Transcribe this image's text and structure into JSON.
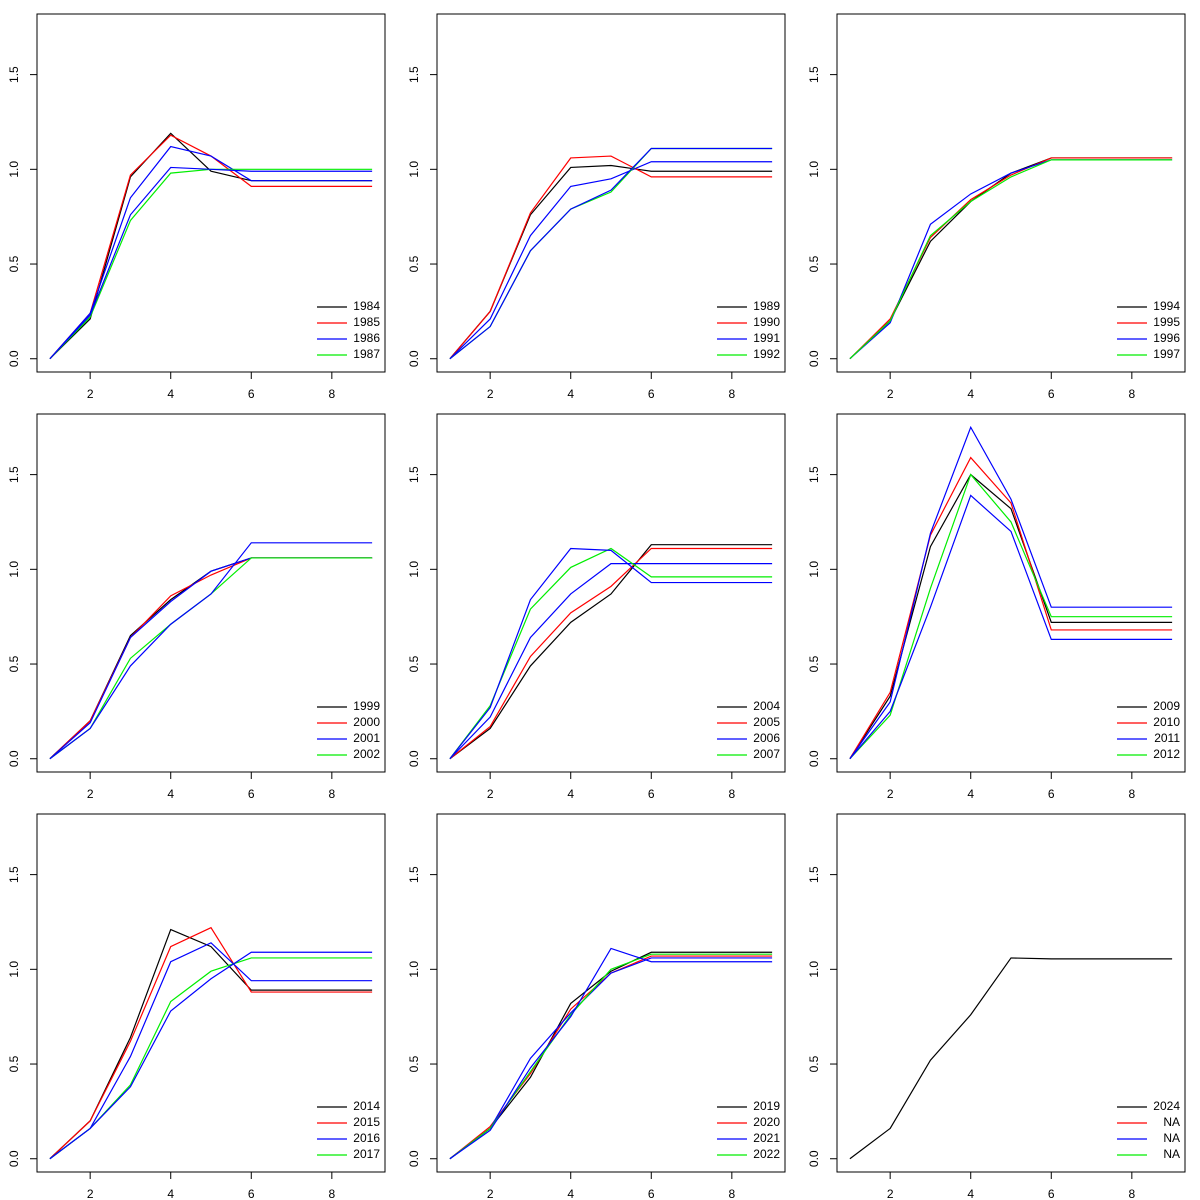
{
  "chart_data": [
    {
      "type": "line",
      "x": [
        1,
        2,
        3,
        4,
        5,
        6,
        7,
        8,
        9
      ],
      "xlim": [
        0.68,
        9.32
      ],
      "ylim": [
        -0.07,
        1.82
      ],
      "xticks": [
        2,
        4,
        6,
        8
      ],
      "yticks": [
        {
          "value": 0,
          "label": "0.0"
        },
        0.5,
        {
          "value": 1,
          "label": "1.0"
        },
        1.5
      ],
      "legend": "bottomright",
      "series": [
        {
          "name": "1984",
          "color": "#000000",
          "values": [
            0,
            0.21,
            0.96,
            1.19,
            0.99,
            0.94,
            0.94,
            0.94,
            0.94
          ]
        },
        {
          "name": "1985",
          "color": "#ff0000",
          "values": [
            0,
            0.24,
            0.97,
            1.18,
            1.07,
            0.91,
            0.91,
            0.91,
            0.91
          ]
        },
        {
          "name": "1986",
          "color": "#0000ff",
          "values": [
            0,
            0.24,
            0.85,
            1.12,
            1.07,
            0.94,
            0.94,
            0.94,
            0.94
          ]
        },
        {
          "name": "1987",
          "color": "#00ee00",
          "values": [
            0,
            0.22,
            0.73,
            0.98,
            1.0,
            1.0,
            1.0,
            1.0,
            1.0
          ]
        },
        {
          "color": "#0000ff",
          "values": [
            0,
            0.23,
            0.76,
            1.01,
            1.0,
            0.99,
            0.99,
            0.99,
            0.99
          ]
        }
      ]
    },
    {
      "type": "line",
      "x": [
        1,
        2,
        3,
        4,
        5,
        6,
        7,
        8,
        9
      ],
      "xlim": [
        0.68,
        9.32
      ],
      "ylim": [
        -0.07,
        1.82
      ],
      "xticks": [
        2,
        4,
        6,
        8
      ],
      "yticks": [
        {
          "value": 0,
          "label": "0.0"
        },
        0.5,
        {
          "value": 1,
          "label": "1.0"
        },
        1.5
      ],
      "legend": "bottomright",
      "series": [
        {
          "name": "1989",
          "color": "#000000",
          "values": [
            0,
            0.25,
            0.76,
            1.01,
            1.02,
            0.99,
            0.99,
            0.99,
            0.99
          ]
        },
        {
          "name": "1990",
          "color": "#ff0000",
          "values": [
            0,
            0.25,
            0.77,
            1.06,
            1.07,
            0.96,
            0.96,
            0.96,
            0.96
          ]
        },
        {
          "name": "1991",
          "color": "#0000ff",
          "values": [
            0,
            0.21,
            0.65,
            0.91,
            0.95,
            1.04,
            1.04,
            1.04,
            1.04
          ]
        },
        {
          "name": "1992",
          "color": "#00ee00",
          "values": [
            0,
            0.17,
            0.57,
            0.79,
            0.88,
            1.11,
            1.11,
            1.11,
            1.11
          ]
        },
        {
          "color": "#0000ff",
          "values": [
            0,
            0.17,
            0.57,
            0.79,
            0.89,
            1.11,
            1.11,
            1.11,
            1.11
          ]
        }
      ]
    },
    {
      "type": "line",
      "x": [
        1,
        2,
        3,
        4,
        5,
        6,
        7,
        8,
        9
      ],
      "xlim": [
        0.68,
        9.32
      ],
      "ylim": [
        -0.07,
        1.82
      ],
      "xticks": [
        2,
        4,
        6,
        8
      ],
      "yticks": [
        {
          "value": 0,
          "label": "0.0"
        },
        0.5,
        {
          "value": 1,
          "label": "1.0"
        },
        1.5
      ],
      "legend": "bottomright",
      "series": [
        {
          "name": "1994",
          "color": "#000000",
          "values": [
            0,
            0.2,
            0.62,
            0.83,
            0.98,
            1.06,
            1.06,
            1.06,
            1.06
          ]
        },
        {
          "name": "1995",
          "color": "#ff0000",
          "values": [
            0,
            0.21,
            0.64,
            0.84,
            0.97,
            1.06,
            1.06,
            1.06,
            1.06
          ]
        },
        {
          "name": "1996",
          "color": "#0000ff",
          "values": [
            0,
            0.19,
            0.71,
            0.87,
            0.98,
            1.05,
            1.05,
            1.05,
            1.05
          ]
        },
        {
          "name": "1997",
          "color": "#00ee00",
          "values": [
            0,
            0.2,
            0.65,
            0.83,
            0.96,
            1.05,
            1.05,
            1.05,
            1.05
          ]
        }
      ]
    },
    {
      "type": "line",
      "x": [
        1,
        2,
        3,
        4,
        5,
        6,
        7,
        8,
        9
      ],
      "xlim": [
        0.68,
        9.32
      ],
      "ylim": [
        -0.07,
        1.82
      ],
      "xticks": [
        2,
        4,
        6,
        8
      ],
      "yticks": [
        {
          "value": 0,
          "label": "0.0"
        },
        0.5,
        {
          "value": 1,
          "label": "1.0"
        },
        1.5
      ],
      "legend": "bottomright",
      "series": [
        {
          "name": "1999",
          "color": "#000000",
          "values": [
            0,
            0.2,
            0.65,
            0.84,
            0.99,
            1.06,
            1.06,
            1.06,
            1.06
          ]
        },
        {
          "name": "2000",
          "color": "#ff0000",
          "values": [
            0,
            0.2,
            0.64,
            0.86,
            0.97,
            1.06,
            1.06,
            1.06,
            1.06
          ]
        },
        {
          "name": "2001",
          "color": "#0000ff",
          "values": [
            0,
            0.19,
            0.64,
            0.83,
            0.99,
            1.06,
            1.06,
            1.06,
            1.06
          ]
        },
        {
          "name": "2002",
          "color": "#00ee00",
          "values": [
            0,
            0.16,
            0.53,
            0.71,
            0.87,
            1.06,
            1.06,
            1.06,
            1.06
          ]
        },
        {
          "color": "#0000ff",
          "values": [
            0,
            0.16,
            0.49,
            0.71,
            0.87,
            1.14,
            1.14,
            1.14,
            1.14
          ]
        }
      ]
    },
    {
      "type": "line",
      "x": [
        1,
        2,
        3,
        4,
        5,
        6,
        7,
        8,
        9
      ],
      "xlim": [
        0.68,
        9.32
      ],
      "ylim": [
        -0.07,
        1.82
      ],
      "xticks": [
        2,
        4,
        6,
        8
      ],
      "yticks": [
        {
          "value": 0,
          "label": "0.0"
        },
        0.5,
        {
          "value": 1,
          "label": "1.0"
        },
        1.5
      ],
      "legend": "bottomright",
      "series": [
        {
          "name": "2004",
          "color": "#000000",
          "values": [
            0,
            0.16,
            0.49,
            0.72,
            0.87,
            1.13,
            1.13,
            1.13,
            1.13
          ]
        },
        {
          "name": "2005",
          "color": "#ff0000",
          "values": [
            0,
            0.17,
            0.54,
            0.77,
            0.91,
            1.11,
            1.11,
            1.11,
            1.11
          ]
        },
        {
          "name": "2006",
          "color": "#0000ff",
          "values": [
            0,
            0.22,
            0.64,
            0.87,
            1.03,
            1.03,
            1.03,
            1.03,
            1.03
          ]
        },
        {
          "name": "2007",
          "color": "#00ee00",
          "values": [
            0,
            0.28,
            0.79,
            1.01,
            1.11,
            0.96,
            0.96,
            0.96,
            0.96
          ]
        },
        {
          "color": "#0000ff",
          "values": [
            0,
            0.27,
            0.84,
            1.11,
            1.1,
            0.93,
            0.93,
            0.93,
            0.93
          ]
        }
      ]
    },
    {
      "type": "line",
      "x": [
        1,
        2,
        3,
        4,
        5,
        6,
        7,
        8,
        9
      ],
      "xlim": [
        0.68,
        9.32
      ],
      "ylim": [
        -0.07,
        1.82
      ],
      "xticks": [
        2,
        4,
        6,
        8
      ],
      "yticks": [
        {
          "value": 0,
          "label": "0.0"
        },
        0.5,
        {
          "value": 1,
          "label": "1.0"
        },
        1.5
      ],
      "legend": "bottomright",
      "series": [
        {
          "name": "2009",
          "color": "#000000",
          "values": [
            0,
            0.33,
            1.12,
            1.5,
            1.32,
            0.72,
            0.72,
            0.72,
            0.72
          ]
        },
        {
          "name": "2010",
          "color": "#ff0000",
          "values": [
            0,
            0.35,
            1.18,
            1.59,
            1.35,
            0.68,
            0.68,
            0.68,
            0.68
          ]
        },
        {
          "name": "2011",
          "color": "#0000ff",
          "values": [
            0,
            0.3,
            1.19,
            1.75,
            1.37,
            0.8,
            0.8,
            0.8,
            0.8
          ]
        },
        {
          "name": "2012",
          "color": "#00ee00",
          "values": [
            0,
            0.23,
            0.9,
            1.5,
            1.25,
            0.75,
            0.75,
            0.75,
            0.75
          ]
        },
        {
          "color": "#0000ff",
          "values": [
            0,
            0.25,
            0.8,
            1.39,
            1.2,
            0.63,
            0.63,
            0.63,
            0.63
          ]
        }
      ]
    },
    {
      "type": "line",
      "x": [
        1,
        2,
        3,
        4,
        5,
        6,
        7,
        8,
        9
      ],
      "xlim": [
        0.68,
        9.32
      ],
      "ylim": [
        -0.07,
        1.82
      ],
      "xticks": [
        2,
        4,
        6,
        8
      ],
      "yticks": [
        {
          "value": 0,
          "label": "0.0"
        },
        0.5,
        {
          "value": 1,
          "label": "1.0"
        },
        1.5
      ],
      "legend": "bottomright",
      "series": [
        {
          "name": "2014",
          "color": "#000000",
          "values": [
            0,
            0.2,
            0.64,
            1.21,
            1.12,
            0.89,
            0.89,
            0.89,
            0.89
          ]
        },
        {
          "name": "2015",
          "color": "#ff0000",
          "values": [
            0,
            0.2,
            0.62,
            1.12,
            1.22,
            0.88,
            0.88,
            0.88,
            0.88
          ]
        },
        {
          "name": "2016",
          "color": "#0000ff",
          "values": [
            0,
            0.16,
            0.54,
            1.04,
            1.14,
            0.94,
            0.94,
            0.94,
            0.94
          ]
        },
        {
          "name": "2017",
          "color": "#00ee00",
          "values": [
            0,
            0.16,
            0.39,
            0.83,
            0.99,
            1.06,
            1.06,
            1.06,
            1.06
          ]
        },
        {
          "color": "#0000ff",
          "values": [
            0,
            0.16,
            0.38,
            0.78,
            0.95,
            1.09,
            1.09,
            1.09,
            1.09
          ]
        }
      ]
    },
    {
      "type": "line",
      "x": [
        1,
        2,
        3,
        4,
        5,
        6,
        7,
        8,
        9
      ],
      "xlim": [
        0.68,
        9.32
      ],
      "ylim": [
        -0.07,
        1.82
      ],
      "xticks": [
        2,
        4,
        6,
        8
      ],
      "yticks": [
        {
          "value": 0,
          "label": "0.0"
        },
        0.5,
        {
          "value": 1,
          "label": "1.0"
        },
        1.5
      ],
      "legend": "bottomright",
      "series": [
        {
          "name": "2019",
          "color": "#000000",
          "values": [
            0,
            0.16,
            0.43,
            0.82,
            0.99,
            1.09,
            1.09,
            1.09,
            1.09
          ]
        },
        {
          "name": "2020",
          "color": "#ff0000",
          "values": [
            0,
            0.17,
            0.45,
            0.79,
            0.98,
            1.07,
            1.07,
            1.07,
            1.07
          ]
        },
        {
          "name": "2021",
          "color": "#0000ff",
          "values": [
            0,
            0.16,
            0.53,
            0.77,
            0.98,
            1.06,
            1.06,
            1.06,
            1.06
          ]
        },
        {
          "name": "2022",
          "color": "#00ee00",
          "values": [
            0,
            0.16,
            0.46,
            0.76,
            1.0,
            1.08,
            1.08,
            1.08,
            1.08
          ]
        },
        {
          "color": "#0000ff",
          "values": [
            0,
            0.15,
            0.48,
            0.75,
            1.11,
            1.04,
            1.04,
            1.04,
            1.04
          ]
        }
      ]
    },
    {
      "type": "line",
      "x": [
        1,
        2,
        3,
        4,
        5,
        6,
        7,
        8,
        9
      ],
      "xlim": [
        0.68,
        9.32
      ],
      "ylim": [
        -0.07,
        1.82
      ],
      "xticks": [
        2,
        4,
        6,
        8
      ],
      "yticks": [
        {
          "value": 0,
          "label": "0.0"
        },
        0.5,
        {
          "value": 1,
          "label": "1.0"
        },
        1.5
      ],
      "legend": "bottomright",
      "series": [
        {
          "name": "2024",
          "color": "#000000",
          "values": [
            0,
            0.16,
            0.52,
            0.76,
            1.06,
            1.055,
            1.055,
            1.055,
            1.055
          ]
        },
        {
          "name": "NA",
          "color": "#ff0000",
          "values": [
            null,
            null,
            null,
            null,
            null,
            null,
            null,
            null,
            null
          ]
        },
        {
          "name": "NA",
          "color": "#0000ff",
          "values": [
            null,
            null,
            null,
            null,
            null,
            null,
            null,
            null,
            null
          ]
        },
        {
          "name": "NA",
          "color": "#00ee00",
          "values": [
            null,
            null,
            null,
            null,
            null,
            null,
            null,
            null,
            null
          ]
        }
      ]
    }
  ]
}
